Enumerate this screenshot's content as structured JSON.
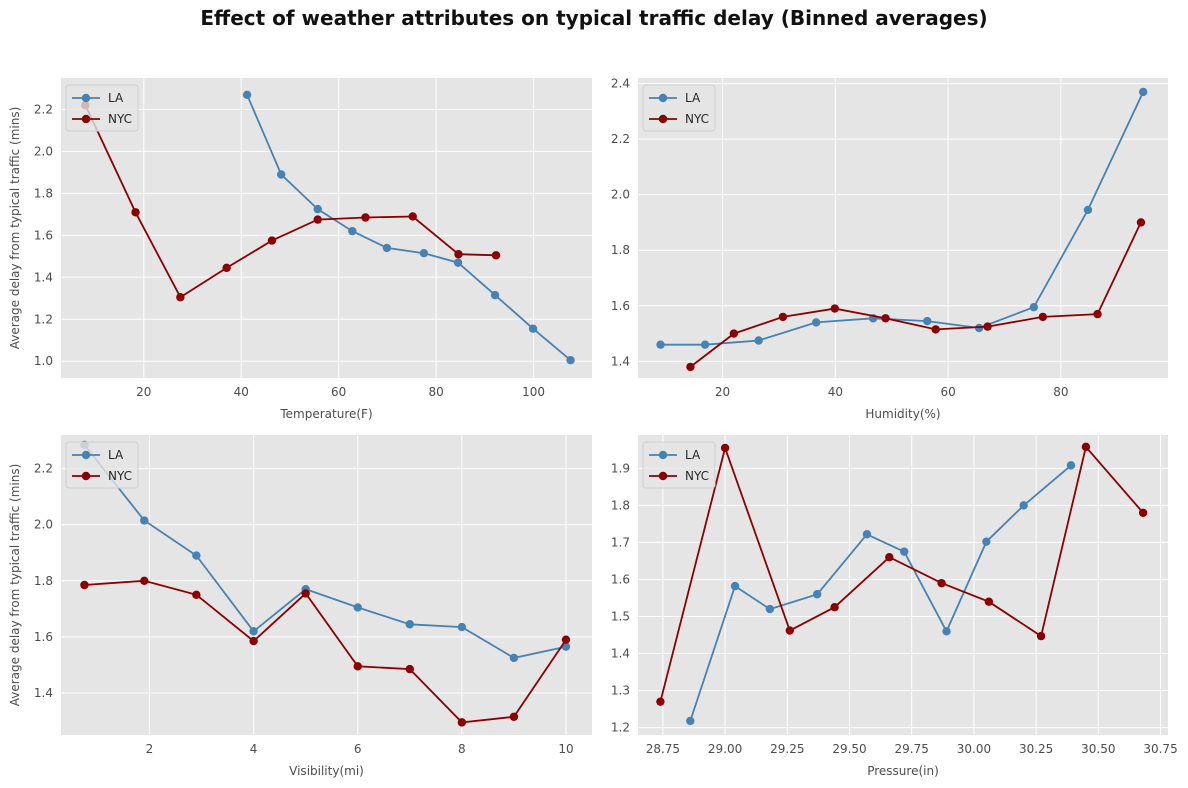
{
  "suptitle": "Effect of weather attributes on typical traffic delay (Binned averages)",
  "style": {
    "axes_bg": "#e5e5e5",
    "grid": "#ffffff",
    "tick_text": "#4d4d4d"
  },
  "chart_data": [
    {
      "type": "line",
      "xlabel": "Temperature(F)",
      "ylabel": "Average delay from typical traffic (mins)",
      "xlim": [
        3,
        112
      ],
      "ylim": [
        0.92,
        2.35
      ],
      "xticks": [
        20,
        40,
        60,
        80,
        100
      ],
      "yticks": [
        "1.0",
        "1.2",
        "1.4",
        "1.6",
        "1.8",
        "2.0",
        "2.2"
      ],
      "legend": "upper-left",
      "grid": true,
      "series": [
        {
          "name": "LA",
          "color": "#4682b4",
          "x": [
            41.2,
            48.2,
            55.7,
            62.8,
            69.9,
            77.5,
            84.5,
            92.1,
            99.9,
            107.6
          ],
          "y": [
            2.27,
            1.89,
            1.725,
            1.62,
            1.54,
            1.515,
            1.47,
            1.315,
            1.155,
            1.005
          ]
        },
        {
          "name": "NYC",
          "color": "#8b0000",
          "x": [
            8.0,
            18.3,
            27.5,
            37.0,
            46.3,
            55.7,
            65.5,
            75.2,
            84.6,
            92.3
          ],
          "y": [
            2.22,
            1.71,
            1.305,
            1.445,
            1.575,
            1.675,
            1.685,
            1.69,
            1.51,
            1.505
          ]
        }
      ]
    },
    {
      "type": "line",
      "xlabel": "Humidity(%)",
      "ylabel": "",
      "xlim": [
        5,
        99
      ],
      "ylim": [
        1.34,
        2.42
      ],
      "xticks": [
        20,
        40,
        60,
        80
      ],
      "yticks": [
        "1.4",
        "1.6",
        "1.8",
        "2.0",
        "2.2",
        "2.4"
      ],
      "legend": "upper-left",
      "grid": true,
      "series": [
        {
          "name": "LA",
          "color": "#4682b4",
          "x": [
            9.0,
            16.9,
            26.4,
            36.6,
            46.7,
            56.3,
            65.5,
            75.2,
            84.8,
            94.6
          ],
          "y": [
            1.46,
            1.46,
            1.475,
            1.54,
            1.555,
            1.545,
            1.52,
            1.595,
            1.945,
            2.37
          ]
        },
        {
          "name": "NYC",
          "color": "#8b0000",
          "x": [
            14.3,
            22.0,
            30.7,
            39.9,
            48.9,
            57.8,
            67.0,
            76.8,
            86.5,
            94.2
          ],
          "y": [
            1.38,
            1.5,
            1.56,
            1.59,
            1.555,
            1.515,
            1.525,
            1.56,
            1.57,
            1.9
          ]
        }
      ]
    },
    {
      "type": "line",
      "xlabel": "Visibility(mi)",
      "ylabel": "Average delay from typical traffic (mins)",
      "xlim": [
        0.3,
        10.5
      ],
      "ylim": [
        1.25,
        2.32
      ],
      "xticks": [
        2,
        4,
        6,
        8,
        10
      ],
      "yticks": [
        "1.4",
        "1.6",
        "1.8",
        "2.0",
        "2.2"
      ],
      "legend": "upper-left",
      "grid": true,
      "series": [
        {
          "name": "LA",
          "color": "#4682b4",
          "x": [
            0.75,
            1.9,
            2.9,
            4.0,
            5.0,
            6.0,
            7.0,
            8.0,
            9.0,
            10.0
          ],
          "y": [
            2.285,
            2.015,
            1.89,
            1.62,
            1.77,
            1.705,
            1.645,
            1.635,
            1.525,
            1.565
          ]
        },
        {
          "name": "NYC",
          "color": "#8b0000",
          "x": [
            0.75,
            1.9,
            2.9,
            4.0,
            5.0,
            6.0,
            7.0,
            8.0,
            9.0,
            10.0
          ],
          "y": [
            1.785,
            1.8,
            1.75,
            1.585,
            1.755,
            1.495,
            1.485,
            1.295,
            1.315,
            1.59
          ]
        }
      ]
    },
    {
      "type": "line",
      "xlabel": "Pressure(in)",
      "ylabel": "",
      "xlim": [
        28.65,
        30.78
      ],
      "ylim": [
        1.18,
        1.99
      ],
      "xticks": [
        28.75,
        29.0,
        29.25,
        29.5,
        29.75,
        30.0,
        30.25,
        30.5,
        30.75
      ],
      "xticklabels": [
        "28.75",
        "29.00",
        "29.25",
        "29.50",
        "29.75",
        "30.00",
        "30.25",
        "30.50",
        "30.75"
      ],
      "yticks": [
        "1.2",
        "1.3",
        "1.4",
        "1.5",
        "1.6",
        "1.7",
        "1.8",
        "1.9"
      ],
      "legend": "upper-left",
      "grid": true,
      "series": [
        {
          "name": "LA",
          "color": "#4682b4",
          "x": [
            28.86,
            29.04,
            29.18,
            29.37,
            29.57,
            29.72,
            29.89,
            30.05,
            30.2,
            30.39
          ],
          "y": [
            1.218,
            1.582,
            1.52,
            1.56,
            1.722,
            1.675,
            1.46,
            1.702,
            1.8,
            1.908
          ]
        },
        {
          "name": "NYC",
          "color": "#8b0000",
          "x": [
            28.74,
            29.0,
            29.26,
            29.44,
            29.66,
            29.87,
            30.06,
            30.27,
            30.45,
            30.68
          ],
          "y": [
            1.27,
            1.955,
            1.462,
            1.525,
            1.66,
            1.59,
            1.54,
            1.447,
            1.958,
            1.78
          ]
        }
      ]
    }
  ]
}
